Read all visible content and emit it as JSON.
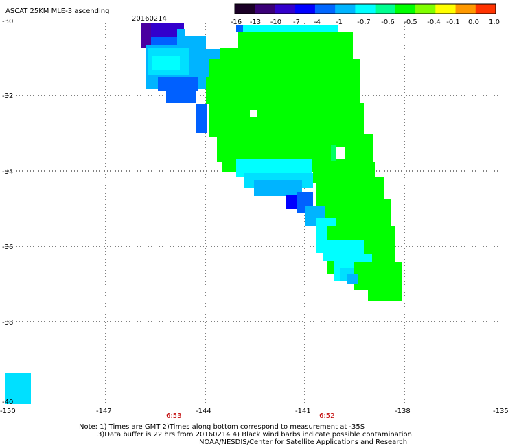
{
  "header": {
    "title": "ASCAT 25KM MLE-3 ascending",
    "date": "20160214"
  },
  "colorbar": {
    "labels": [
      "-16",
      "-13",
      "-10",
      "-7",
      "-4",
      "-1",
      "-0.7",
      "-0.6",
      "-0.5",
      "-0.4",
      "-0.1",
      "0.0",
      "1.0"
    ],
    "colors": [
      "#1a0026",
      "#3a0077",
      "#3300cc",
      "#0000ff",
      "#0066ff",
      "#00b4ff",
      "#00ffff",
      "#00ff90",
      "#00ff00",
      "#80ff00",
      "#ffff00",
      "#ff9900",
      "#ff3300"
    ]
  },
  "axes": {
    "lat_labels": [
      "-30",
      "-32",
      "-34",
      "-36",
      "-38",
      "-40"
    ],
    "lon_labels": [
      "-150",
      "-147",
      "-144",
      "-141",
      "-138",
      "-135"
    ],
    "time_labels": [
      "6:53",
      "6:52"
    ]
  },
  "footer": {
    "note1": "Note: 1) Times are GMT 2)Times along bottom correspond to measurement at -35S",
    "note2": "3)Data buffer is 22 hrs from 20160214 4) Black wind barbs indicate possible contamination",
    "note3": "NOAA/NESDIS/Center for Satellite Applications and Research"
  },
  "colors": {
    "green": "#00ff00",
    "light_green": "#00ff60",
    "cyan": "#00ffff",
    "aqua": "#00e0ff",
    "sky": "#00b4ff",
    "blue": "#0060ff",
    "deep_blue": "#0000ff",
    "indigo": "#3300cc",
    "purple": "#4a00a0"
  }
}
